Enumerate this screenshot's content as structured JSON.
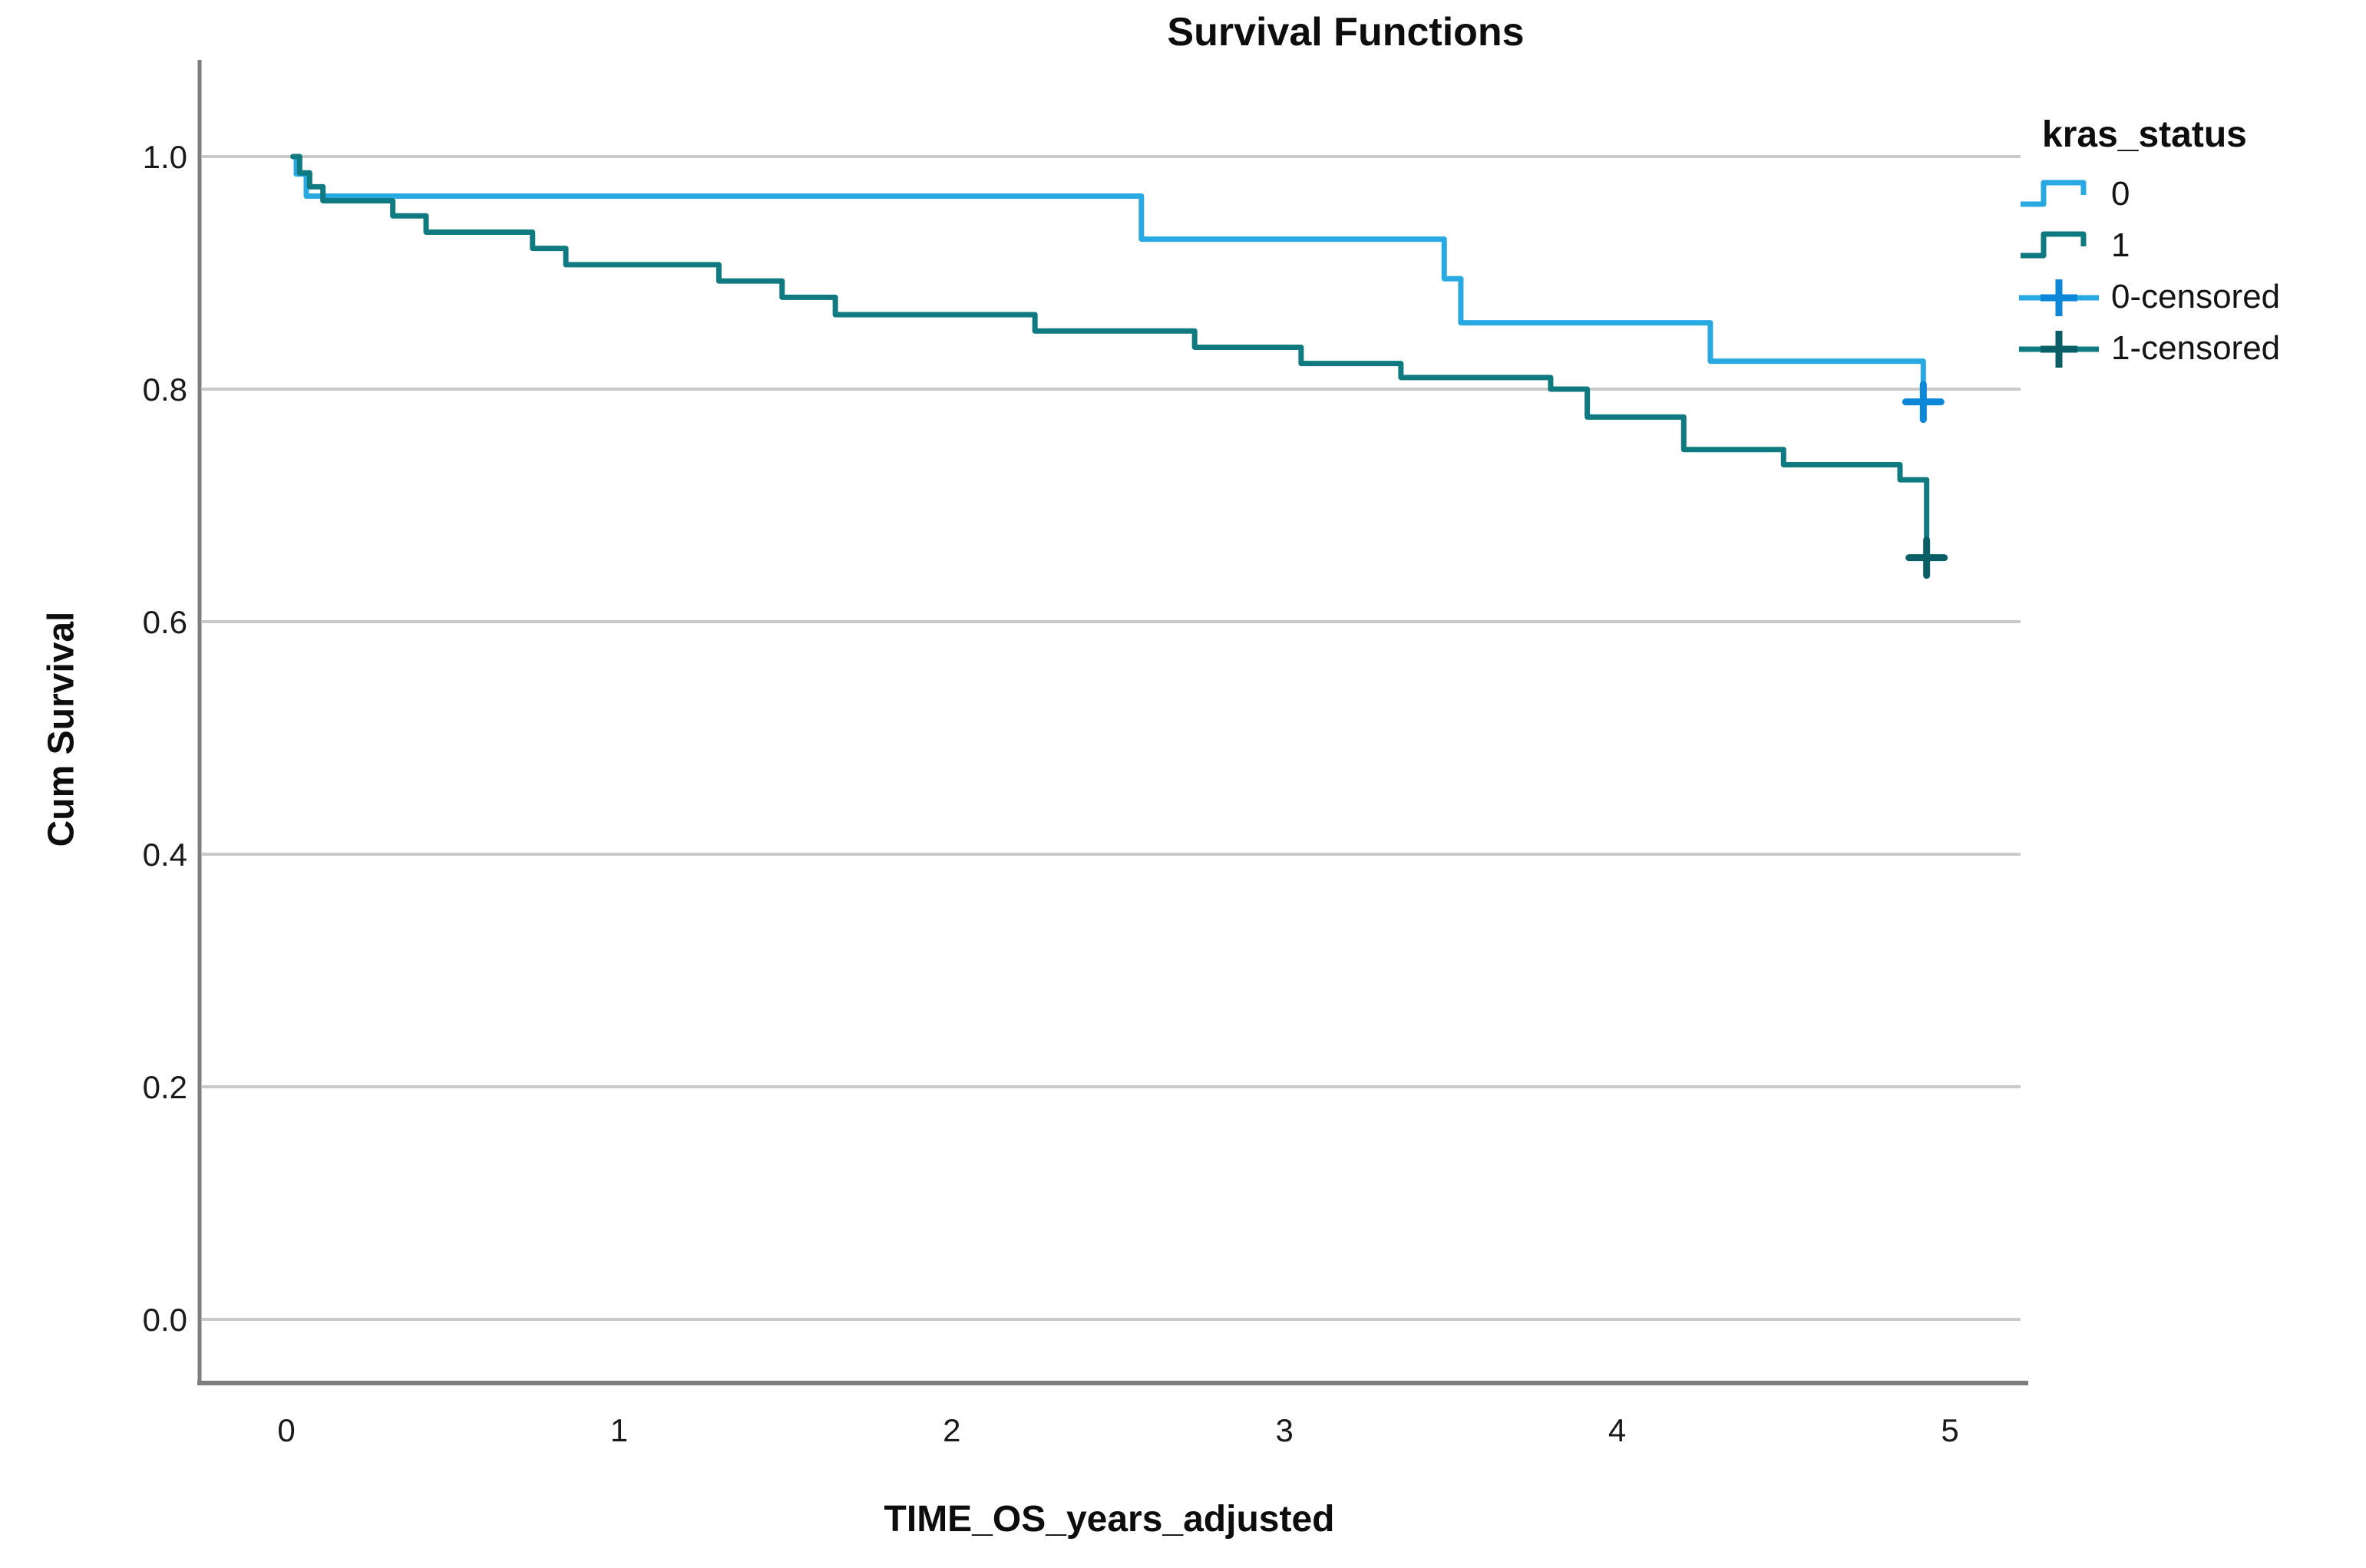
{
  "title": "Survival Functions",
  "axes": {
    "x": {
      "label": "TIME_OS_years_adjusted",
      "ticks": [
        0,
        1,
        2,
        3,
        4,
        5
      ]
    },
    "y": {
      "label": "Cum Survival",
      "ticks": [
        "1.0",
        "0.8",
        "0.6",
        "0.4",
        "0.2",
        "0.0"
      ]
    }
  },
  "legend": {
    "title": "kras_status",
    "items": [
      {
        "label": "0"
      },
      {
        "label": "1"
      },
      {
        "label": "0-censored"
      },
      {
        "label": "1-censored"
      }
    ]
  },
  "colors": {
    "gridline": "#C9C9C9",
    "axis": "#7E7E7E",
    "text": "#1A1A1A"
  },
  "chart_data": {
    "type": "line",
    "subtype": "kaplan-meier-step",
    "title": "Survival Functions",
    "xlabel": "TIME_OS_years_adjusted",
    "ylabel": "Cum Survival",
    "xlim": [
      -0.26,
      5.23
    ],
    "ylim": [
      -0.05,
      1.08
    ],
    "grid": "horizontal",
    "legend_position": "right",
    "y_gridlines": [
      1.0,
      0.8,
      0.6,
      0.4,
      0.2,
      0.0
    ],
    "series": [
      {
        "name": "0",
        "color": "#29A9E2",
        "censor_color": "#0D87D8",
        "points": [
          [
            0.02,
            1.0
          ],
          [
            0.03,
            0.985
          ],
          [
            0.06,
            0.966
          ],
          [
            2.57,
            0.929
          ],
          [
            3.48,
            0.895
          ],
          [
            3.53,
            0.857
          ],
          [
            4.28,
            0.824
          ],
          [
            4.92,
            0.789
          ]
        ],
        "censored": [
          [
            4.92,
            0.789
          ]
        ]
      },
      {
        "name": "1",
        "color": "#0F7A7F",
        "censor_color": "#0A5F66",
        "points": [
          [
            0.02,
            1.0
          ],
          [
            0.04,
            0.986
          ],
          [
            0.07,
            0.974
          ],
          [
            0.11,
            0.962
          ],
          [
            0.32,
            0.949
          ],
          [
            0.42,
            0.935
          ],
          [
            0.74,
            0.921
          ],
          [
            0.84,
            0.907
          ],
          [
            1.3,
            0.893
          ],
          [
            1.49,
            0.879
          ],
          [
            1.65,
            0.864
          ],
          [
            2.25,
            0.85
          ],
          [
            2.73,
            0.836
          ],
          [
            3.05,
            0.822
          ],
          [
            3.35,
            0.81
          ],
          [
            3.8,
            0.8
          ],
          [
            3.91,
            0.776
          ],
          [
            4.2,
            0.748
          ],
          [
            4.5,
            0.735
          ],
          [
            4.85,
            0.722
          ],
          [
            4.93,
            0.655
          ]
        ],
        "censored": [
          [
            4.93,
            0.655
          ]
        ]
      }
    ]
  }
}
